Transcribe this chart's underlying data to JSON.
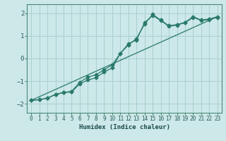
{
  "xlabel": "Humidex (Indice chaleur)",
  "bg_color": "#cce8e8",
  "grid_color": "#aacfcf",
  "line_color": "#2a7a6a",
  "xlim": [
    -0.5,
    23.5
  ],
  "ylim": [
    -2.4,
    2.4
  ],
  "yticks": [
    -2,
    -1,
    0,
    1,
    2
  ],
  "xticks": [
    0,
    1,
    2,
    3,
    4,
    5,
    6,
    7,
    8,
    9,
    10,
    11,
    12,
    13,
    14,
    15,
    16,
    17,
    18,
    19,
    20,
    21,
    22,
    23
  ],
  "line1_x": [
    0,
    1,
    2,
    3,
    4,
    5,
    6,
    7,
    8,
    9,
    10,
    11,
    12,
    13,
    14,
    15,
    16,
    17,
    18,
    19,
    20,
    21,
    22,
    23
  ],
  "line1_y": [
    -1.85,
    -1.82,
    -1.75,
    -1.6,
    -1.5,
    -1.48,
    -1.12,
    -0.95,
    -0.85,
    -0.6,
    -0.42,
    0.22,
    0.65,
    0.82,
    1.58,
    1.9,
    1.68,
    1.42,
    1.48,
    1.58,
    1.82,
    1.68,
    1.72,
    1.82
  ],
  "line2_x": [
    0,
    1,
    2,
    3,
    4,
    5,
    6,
    7,
    8,
    9,
    10,
    11,
    12,
    13,
    14,
    15,
    16,
    17,
    18,
    19,
    20,
    21,
    22,
    23
  ],
  "line2_y": [
    -1.85,
    -1.82,
    -1.75,
    -1.58,
    -1.5,
    -1.45,
    -1.05,
    -0.82,
    -0.72,
    -0.5,
    -0.28,
    0.22,
    0.6,
    0.88,
    1.52,
    1.95,
    1.7,
    1.45,
    1.5,
    1.6,
    1.85,
    1.7,
    1.75,
    1.85
  ],
  "line3_x": [
    0,
    23
  ],
  "line3_y": [
    -1.85,
    1.85
  ]
}
